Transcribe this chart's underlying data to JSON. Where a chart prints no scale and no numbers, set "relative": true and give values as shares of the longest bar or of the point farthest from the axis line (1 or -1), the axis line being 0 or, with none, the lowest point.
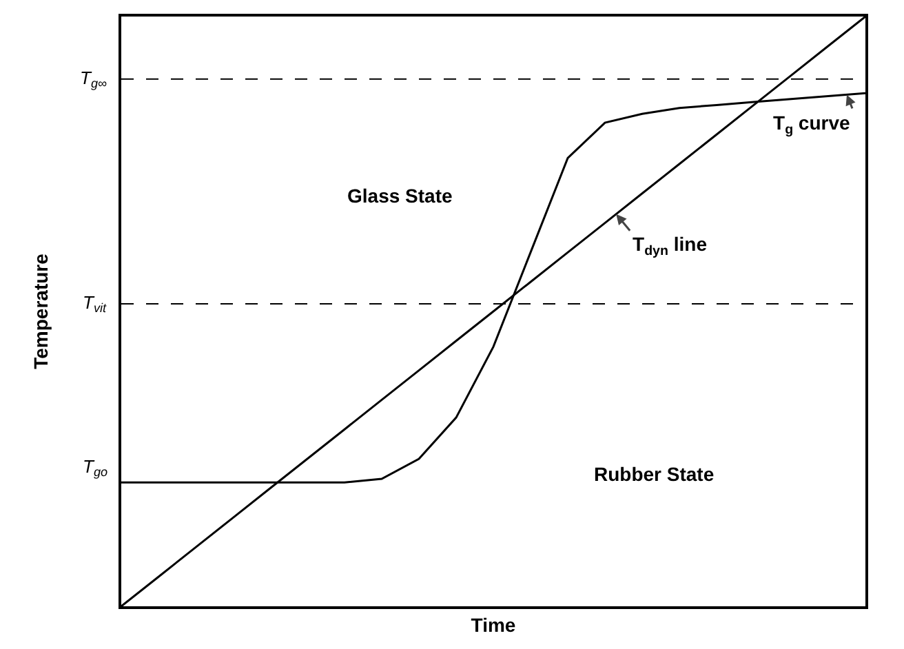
{
  "chart_data": {
    "type": "line",
    "relative": true,
    "xlabel": "Time",
    "ylabel": "Temperature",
    "categories": [
      null,
      null,
      null,
      null,
      null,
      null,
      null,
      null,
      null,
      null,
      null,
      null,
      null,
      null,
      null,
      null,
      null,
      null,
      null,
      null,
      null
    ],
    "series": [
      {
        "name": "T$_{g}$ curve",
        "color": "#000000",
        "values": [
          0.21,
          0.21,
          0.21,
          0.21,
          0.21,
          0.21,
          0.21,
          0.216,
          0.25,
          0.32,
          0.44,
          0.6,
          0.76,
          0.82,
          0.835,
          0.845,
          0.85,
          0.855,
          0.86,
          0.865,
          0.87
        ]
      },
      {
        "name": "T$_{dyn}$ line",
        "color": "#000000",
        "values": [
          0,
          0.05,
          0.1,
          0.15,
          0.2,
          0.25,
          0.3,
          0.35,
          0.4,
          0.45,
          0.5,
          0.55,
          0.6,
          0.65,
          0.7,
          0.75,
          0.8,
          0.85,
          0.9,
          0.95,
          1
        ]
      }
    ],
    "ref_lines": [
      {
        "axis": "y",
        "value": 0.894,
        "label": "T$_{g∞}$",
        "line_style": "dashed"
      },
      {
        "axis": "y",
        "value": 0.513,
        "label": "T$_{vit}$",
        "line_style": "dashed"
      }
    ],
    "annotations": [
      "Glass State",
      "Rubber State",
      "T$_{go}$"
    ],
    "marker": "none",
    "line_style": "solid",
    "grid": false,
    "legend": false
  }
}
